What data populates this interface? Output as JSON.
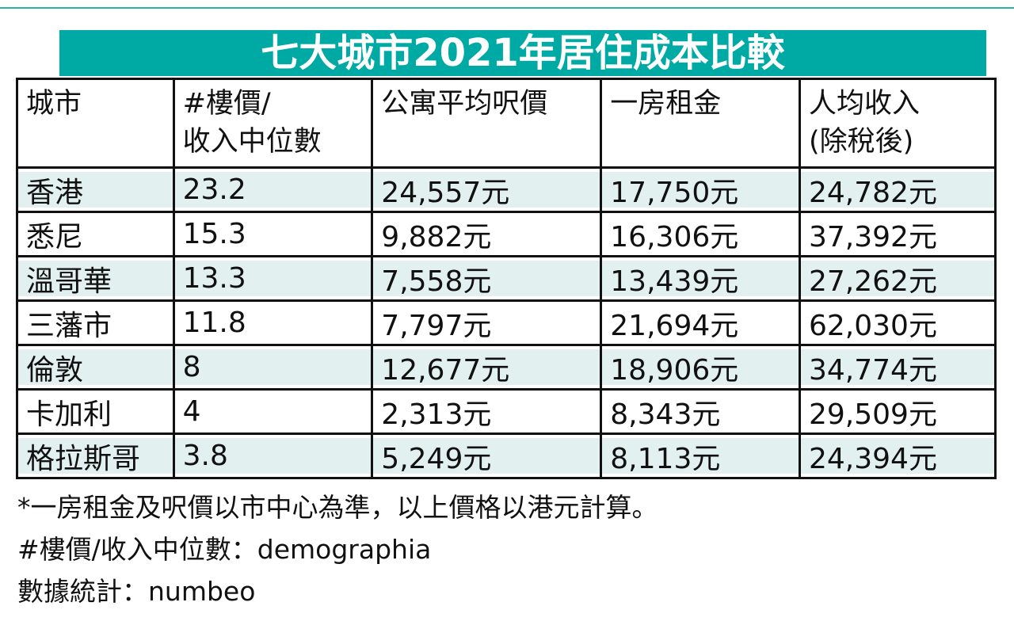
{
  "page": {
    "title_banner": "七大城市2021年居住成本比較",
    "colors": {
      "banner_teal": "#00aaa4",
      "row_tint": "#e2f1ef",
      "top_rule_teal": "#2bb2aa",
      "border_black": "#111111",
      "title_text": "#ffffff"
    }
  },
  "table": {
    "headers": [
      {
        "line1": "城市",
        "line2": ""
      },
      {
        "line1": "#樓價/",
        "line2": "收入中位數"
      },
      {
        "line1": "公寓平均呎價",
        "line2": ""
      },
      {
        "line1": "一房租金",
        "line2": ""
      },
      {
        "line1": "人均收入",
        "line2": "(除稅後)"
      }
    ],
    "rows": [
      {
        "city": "香港",
        "price_income_ratio": "23.2",
        "avg_psf_price": "24,557元",
        "one_bed_rent": "17,750元",
        "income_after_tax": "24,782元"
      },
      {
        "city": "悉尼",
        "price_income_ratio": "15.3",
        "avg_psf_price": "9,882元",
        "one_bed_rent": "16,306元",
        "income_after_tax": "37,392元"
      },
      {
        "city": "溫哥華",
        "price_income_ratio": "13.3",
        "avg_psf_price": "7,558元",
        "one_bed_rent": "13,439元",
        "income_after_tax": "27,262元"
      },
      {
        "city": "三藩市",
        "price_income_ratio": "11.8",
        "avg_psf_price": "7,797元",
        "one_bed_rent": "21,694元",
        "income_after_tax": "62,030元"
      },
      {
        "city": "倫敦",
        "price_income_ratio": "8",
        "avg_psf_price": "12,677元",
        "one_bed_rent": "18,906元",
        "income_after_tax": "34,774元"
      },
      {
        "city": "卡加利",
        "price_income_ratio": "4",
        "avg_psf_price": "2,313元",
        "one_bed_rent": "8,343元",
        "income_after_tax": "29,509元"
      },
      {
        "city": "格拉斯哥",
        "price_income_ratio": "3.8",
        "avg_psf_price": "5,249元",
        "one_bed_rent": "8,113元",
        "income_after_tax": "24,394元"
      }
    ]
  },
  "footnotes": [
    "*一房租金及呎價以市中心為準，以上價格以港元計算。",
    "#樓價/收入中位數：demographia",
    "數據統計：numbeo"
  ],
  "chart_data": {
    "type": "table",
    "title": "七大城市2021年居住成本比較",
    "columns": [
      "城市",
      "#樓價/收入中位數",
      "公寓平均呎價",
      "一房租金",
      "人均收入(除稅後)"
    ],
    "unit_note": "價格以港元計算",
    "rows": [
      {
        "city": "香港",
        "price_to_income_ratio": 23.2,
        "avg_psf_price_hkd": 24557,
        "one_bed_rent_hkd": 17750,
        "income_after_tax_hkd": 24782
      },
      {
        "city": "悉尼",
        "price_to_income_ratio": 15.3,
        "avg_psf_price_hkd": 9882,
        "one_bed_rent_hkd": 16306,
        "income_after_tax_hkd": 37392
      },
      {
        "city": "溫哥華",
        "price_to_income_ratio": 13.3,
        "avg_psf_price_hkd": 7558,
        "one_bed_rent_hkd": 13439,
        "income_after_tax_hkd": 27262
      },
      {
        "city": "三藩市",
        "price_to_income_ratio": 11.8,
        "avg_psf_price_hkd": 7797,
        "one_bed_rent_hkd": 21694,
        "income_after_tax_hkd": 62030
      },
      {
        "city": "倫敦",
        "price_to_income_ratio": 8,
        "avg_psf_price_hkd": 12677,
        "one_bed_rent_hkd": 18906,
        "income_after_tax_hkd": 34774
      },
      {
        "city": "卡加利",
        "price_to_income_ratio": 4,
        "avg_psf_price_hkd": 2313,
        "one_bed_rent_hkd": 8343,
        "income_after_tax_hkd": 29509
      },
      {
        "city": "格拉斯哥",
        "price_to_income_ratio": 3.8,
        "avg_psf_price_hkd": 5249,
        "one_bed_rent_hkd": 8113,
        "income_after_tax_hkd": 24394
      }
    ],
    "footnotes": [
      "*一房租金及呎價以市中心為準，以上價格以港元計算。",
      "#樓價/收入中位數：demographia",
      "數據統計：numbeo"
    ]
  }
}
